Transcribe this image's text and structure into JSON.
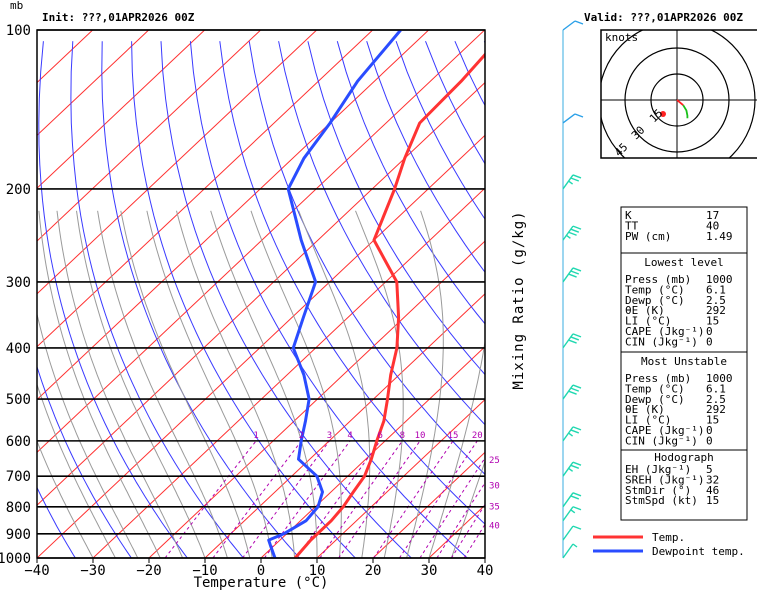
{
  "header": {
    "unit": "mb",
    "init": "Init: ???,01APR2026 00Z",
    "valid": "Valid: ???,01APR2026 00Z"
  },
  "hodograph": {
    "title": "knots",
    "ring_labels": [
      "15",
      "30",
      "45"
    ]
  },
  "legend": {
    "temp_label": "Temp.",
    "dew_label": "Dewpoint temp.",
    "temp_color": "#ff3333",
    "dew_color": "#2a4cff"
  },
  "mixing_ratio": {
    "label": "Mixing Ratio (g/kg)",
    "values": [
      "1",
      "2",
      "3",
      "4",
      "6",
      "8",
      "10",
      "15",
      "20",
      "25",
      "30",
      "35",
      "40"
    ]
  },
  "table": {
    "general": [
      {
        "name": "K",
        "value": "17"
      },
      {
        "name": "TT",
        "value": "40"
      },
      {
        "name": "PW (cm)",
        "value": "1.49"
      }
    ],
    "lowest_title": "Lowest level",
    "lowest": [
      {
        "name": "Press (mb)",
        "value": "1000"
      },
      {
        "name": "Temp (°C)",
        "value": "6.1"
      },
      {
        "name": "Dewp (°C)",
        "value": "2.5"
      },
      {
        "name": "θE (K)",
        "value": "292"
      },
      {
        "name": "LI (°C)",
        "value": "15"
      },
      {
        "name": "CAPE (Jkg⁻¹)",
        "value": "0"
      },
      {
        "name": "CIN (Jkg⁻¹)",
        "value": "0"
      }
    ],
    "unstable_title": "Most Unstable",
    "unstable": [
      {
        "name": "Press (mb)",
        "value": "1000"
      },
      {
        "name": "Temp (°C)",
        "value": "6.1"
      },
      {
        "name": "Dewp (°C)",
        "value": "2.5"
      },
      {
        "name": "θE (K)",
        "value": "292"
      },
      {
        "name": "LI (°C)",
        "value": "15"
      },
      {
        "name": "CAPE (Jkg⁻¹)",
        "value": "0"
      },
      {
        "name": "CIN (Jkg⁻¹)",
        "value": "0"
      }
    ],
    "hodo_title": "Hodograph",
    "hodo": [
      {
        "name": "EH (Jkg⁻¹)",
        "value": "5"
      },
      {
        "name": "SREH (Jkg⁻¹)",
        "value": "32"
      },
      {
        "name": "StmDir (°)",
        "value": "46"
      },
      {
        "name": "StmSpd (kt)",
        "value": "15"
      }
    ]
  },
  "chart_data": {
    "type": "line",
    "title": "",
    "xlabel": "Temperature (°C)",
    "ylabel": "mb",
    "xlim": [
      -40,
      40
    ],
    "ylim": [
      1000,
      100
    ],
    "y_scale": "log",
    "x_ticks": [
      "−40",
      "−30",
      "−20",
      "−10",
      "0",
      "10",
      "20",
      "30",
      "40"
    ],
    "y_ticks": [
      "100",
      "200",
      "300",
      "400",
      "500",
      "600",
      "700",
      "800",
      "900",
      "1000"
    ],
    "series": [
      {
        "name": "Temp.",
        "color": "#ff3333",
        "points": [
          [
            1000,
            6.1
          ],
          [
            925,
            5.5
          ],
          [
            850,
            5.5
          ],
          [
            800,
            5.0
          ],
          [
            750,
            4.0
          ],
          [
            700,
            3.0
          ],
          [
            650,
            1.0
          ],
          [
            600,
            -1.5
          ],
          [
            550,
            -4.0
          ],
          [
            500,
            -7.5
          ],
          [
            450,
            -11.5
          ],
          [
            400,
            -15.5
          ],
          [
            350,
            -21.0
          ],
          [
            300,
            -28.0
          ],
          [
            250,
            -40.0
          ],
          [
            200,
            -46.0
          ],
          [
            175,
            -50.0
          ],
          [
            150,
            -54.0
          ],
          [
            125,
            -54.5
          ],
          [
            100,
            -56.0
          ]
        ]
      },
      {
        "name": "Dewpoint temp.",
        "color": "#2a4cff",
        "points": [
          [
            1000,
            2.5
          ],
          [
            950,
            -0.5
          ],
          [
            925,
            -2.0
          ],
          [
            900,
            -0.5
          ],
          [
            850,
            1.0
          ],
          [
            800,
            0.5
          ],
          [
            750,
            -1.5
          ],
          [
            700,
            -5.5
          ],
          [
            650,
            -12.0
          ],
          [
            600,
            -15.0
          ],
          [
            550,
            -18.0
          ],
          [
            500,
            -21.5
          ],
          [
            450,
            -27.0
          ],
          [
            400,
            -34.0
          ],
          [
            350,
            -38.0
          ],
          [
            300,
            -42.5
          ],
          [
            250,
            -53.0
          ],
          [
            200,
            -65.0
          ],
          [
            175,
            -68.0
          ],
          [
            150,
            -70.0
          ],
          [
            125,
            -73.0
          ],
          [
            100,
            -75.0
          ]
        ]
      }
    ],
    "wind_barbs": [
      {
        "p": 1000,
        "dir": 40,
        "spd": 5
      },
      {
        "p": 925,
        "dir": 60,
        "spd": 10
      },
      {
        "p": 850,
        "dir": 90,
        "spd": 15
      },
      {
        "p": 800,
        "dir": 100,
        "spd": 20
      },
      {
        "p": 700,
        "dir": 110,
        "spd": 25
      },
      {
        "p": 600,
        "dir": 120,
        "spd": 25
      },
      {
        "p": 500,
        "dir": 120,
        "spd": 30
      },
      {
        "p": 400,
        "dir": 120,
        "spd": 30
      },
      {
        "p": 300,
        "dir": 120,
        "spd": 30
      },
      {
        "p": 250,
        "dir": 130,
        "spd": 35
      },
      {
        "p": 200,
        "dir": 120,
        "spd": 25
      },
      {
        "p": 150,
        "dir": 250,
        "spd": 10
      },
      {
        "p": 100,
        "dir": 210,
        "spd": 10
      }
    ],
    "hodograph_trace": [
      [
        0,
        0
      ],
      [
        3,
        2
      ],
      [
        6,
        4
      ],
      [
        9,
        8
      ],
      [
        10,
        12
      ],
      [
        10,
        14
      ]
    ],
    "grid": true
  }
}
